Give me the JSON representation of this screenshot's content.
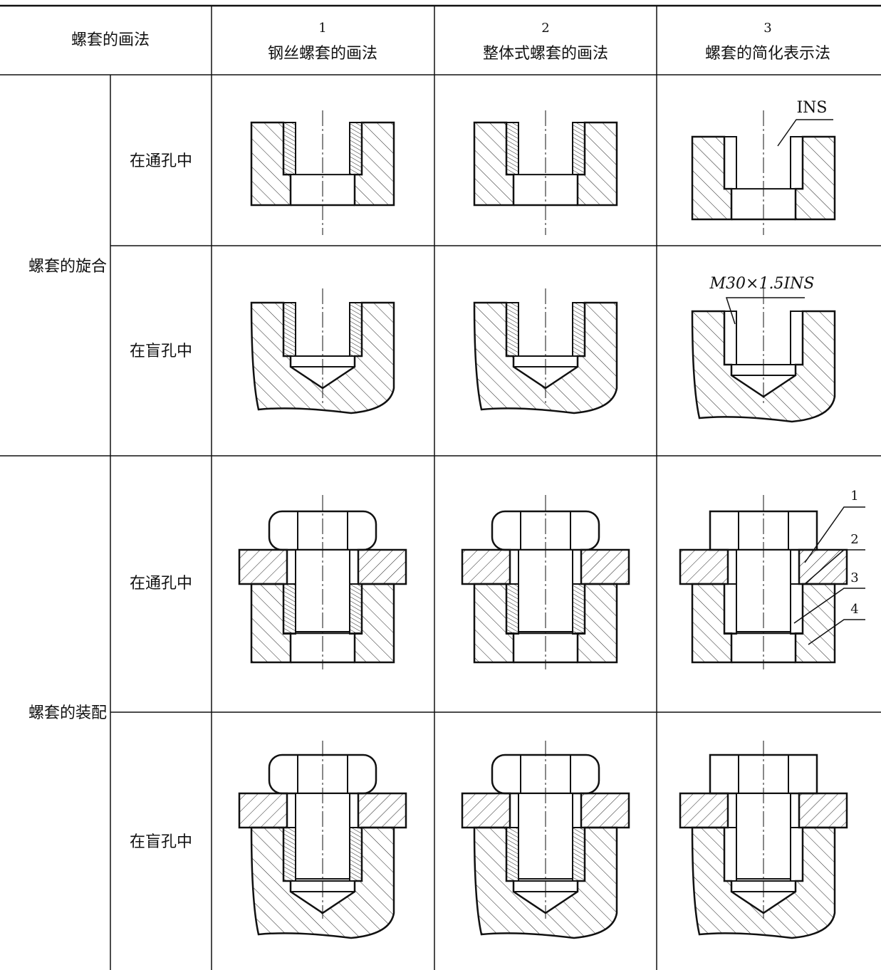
{
  "table": {
    "header": {
      "label": "螺套的画法",
      "columns": [
        {
          "number": "1",
          "title": "钢丝螺套的画法"
        },
        {
          "number": "2",
          "title": "整体式螺套的画法"
        },
        {
          "number": "3",
          "title": "螺套的简化表示法"
        }
      ]
    },
    "groups": [
      {
        "label": "螺套的旋合",
        "rows": [
          "在通孔中",
          "在盲孔中"
        ]
      },
      {
        "label": "螺套的装配",
        "rows": [
          "在通孔中",
          "在盲孔中"
        ]
      }
    ]
  },
  "annotations": {
    "ins": "INS",
    "thread_spec": "M30×1.5INS",
    "callouts": [
      "1",
      "2",
      "3",
      "4"
    ]
  }
}
